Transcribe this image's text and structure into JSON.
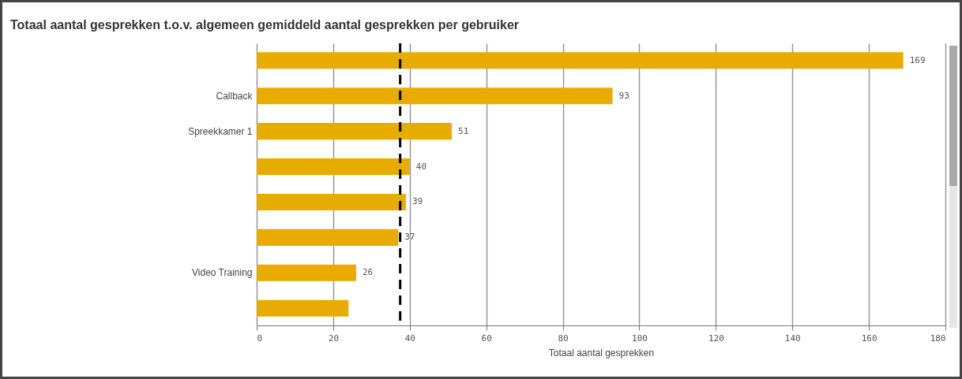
{
  "chart_data": {
    "type": "bar",
    "orientation": "horizontal",
    "title": "Totaal aantal gesprekken t.o.v. algemeen gemiddeld aantal gesprekken per gebruiker",
    "xlabel": "Totaal aantal gesprekken",
    "categories": [
      null,
      "Callback",
      "Spreekkamer 1",
      null,
      null,
      null,
      "Video Training",
      null
    ],
    "values": [
      169,
      93,
      51,
      40,
      39,
      37,
      26,
      24
    ],
    "value_labels": [
      "169",
      "93",
      "51",
      "40",
      "39",
      "37",
      "26",
      null
    ],
    "color": "#e8ac00",
    "xlim": [
      0,
      180
    ],
    "xticks": [
      0,
      20,
      40,
      60,
      80,
      100,
      120,
      140,
      160,
      180
    ],
    "grid": "x",
    "ref_lines": [
      {
        "axis": "x",
        "value": 37.5,
        "color": "#000000",
        "line_style": "dashed"
      }
    ]
  }
}
